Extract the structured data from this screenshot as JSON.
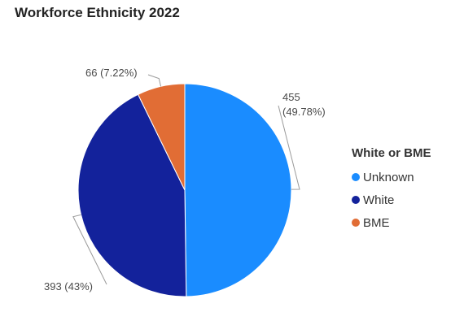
{
  "chart_data": {
    "type": "pie",
    "title": "Workforce Ethnicity 2022",
    "legend_title": "White or BME",
    "legend_position": "right",
    "slices": [
      {
        "name": "Unknown",
        "value": 455,
        "percent": "49.78%",
        "color": "#1a8cff",
        "label_line1": "455",
        "label_line2": "(49.78%)"
      },
      {
        "name": "White",
        "value": 393,
        "percent": "43%",
        "color": "#13229b",
        "label_line1": "393 (43%)"
      },
      {
        "name": "BME",
        "value": 66,
        "percent": "7.22%",
        "color": "#e16d35",
        "label_line1": "66 (7.22%)"
      }
    ]
  }
}
